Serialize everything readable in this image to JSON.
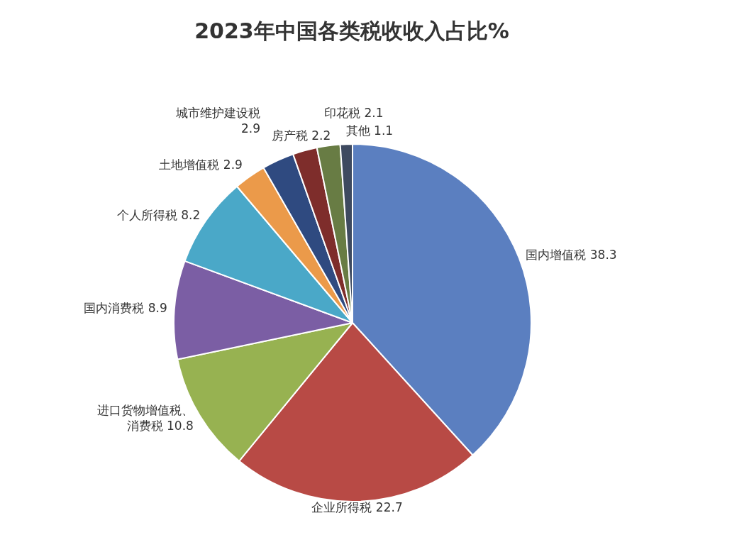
{
  "chart_data": {
    "type": "pie",
    "title": "2023年中国各类税收收入占比%",
    "categories": [
      "国内增值税",
      "企业所得税",
      "进口货物增值税、消费税",
      "国内消费税",
      "个人所得税",
      "土地增值税",
      "城市维护建设税",
      "房产税",
      "印花税",
      "其他"
    ],
    "values": [
      38.3,
      22.7,
      10.8,
      8.9,
      8.2,
      2.9,
      2.9,
      2.2,
      2.1,
      1.1
    ],
    "colors": [
      "#5b7fc0",
      "#b84a45",
      "#97b251",
      "#7b5ea4",
      "#4aa8c8",
      "#eb9a4a",
      "#2f4a80",
      "#7e2d2b",
      "#687c44",
      "#3e4a60"
    ],
    "data_labels": true
  }
}
